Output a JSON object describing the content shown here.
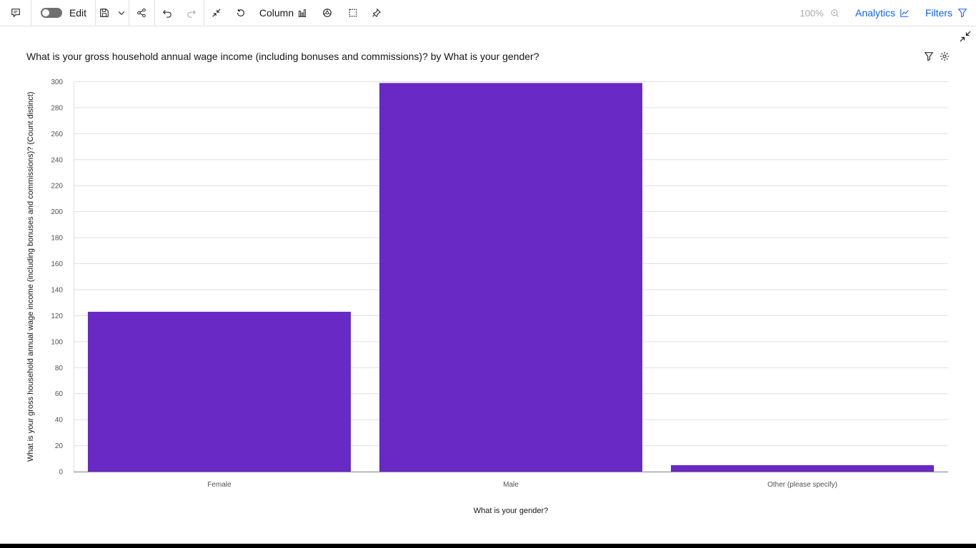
{
  "toolbar": {
    "edit_label": "Edit",
    "chart_type_label": "Column",
    "zoom_label": "100%",
    "analytics_label": "Analytics",
    "filters_label": "Filters"
  },
  "chart_data": {
    "type": "bar",
    "title": "What is your gross household annual wage income (including bonuses and commissions)? by What is your gender?",
    "xlabel": "What is your gender?",
    "ylabel": "What is your gross household annual wage income (including bonuses and commissions)? (Count distinct)",
    "categories": [
      "Female",
      "Male",
      "Other (please specify)"
    ],
    "values": [
      123,
      299,
      5
    ],
    "ylim": [
      0,
      300
    ],
    "yticks": [
      0,
      20,
      40,
      60,
      80,
      100,
      120,
      140,
      160,
      180,
      200,
      220,
      240,
      260,
      280,
      300
    ],
    "grid": true,
    "bar_color": "#6929c4"
  },
  "colors": {
    "accent": "#0f62fe",
    "bar": "#6929c4"
  }
}
